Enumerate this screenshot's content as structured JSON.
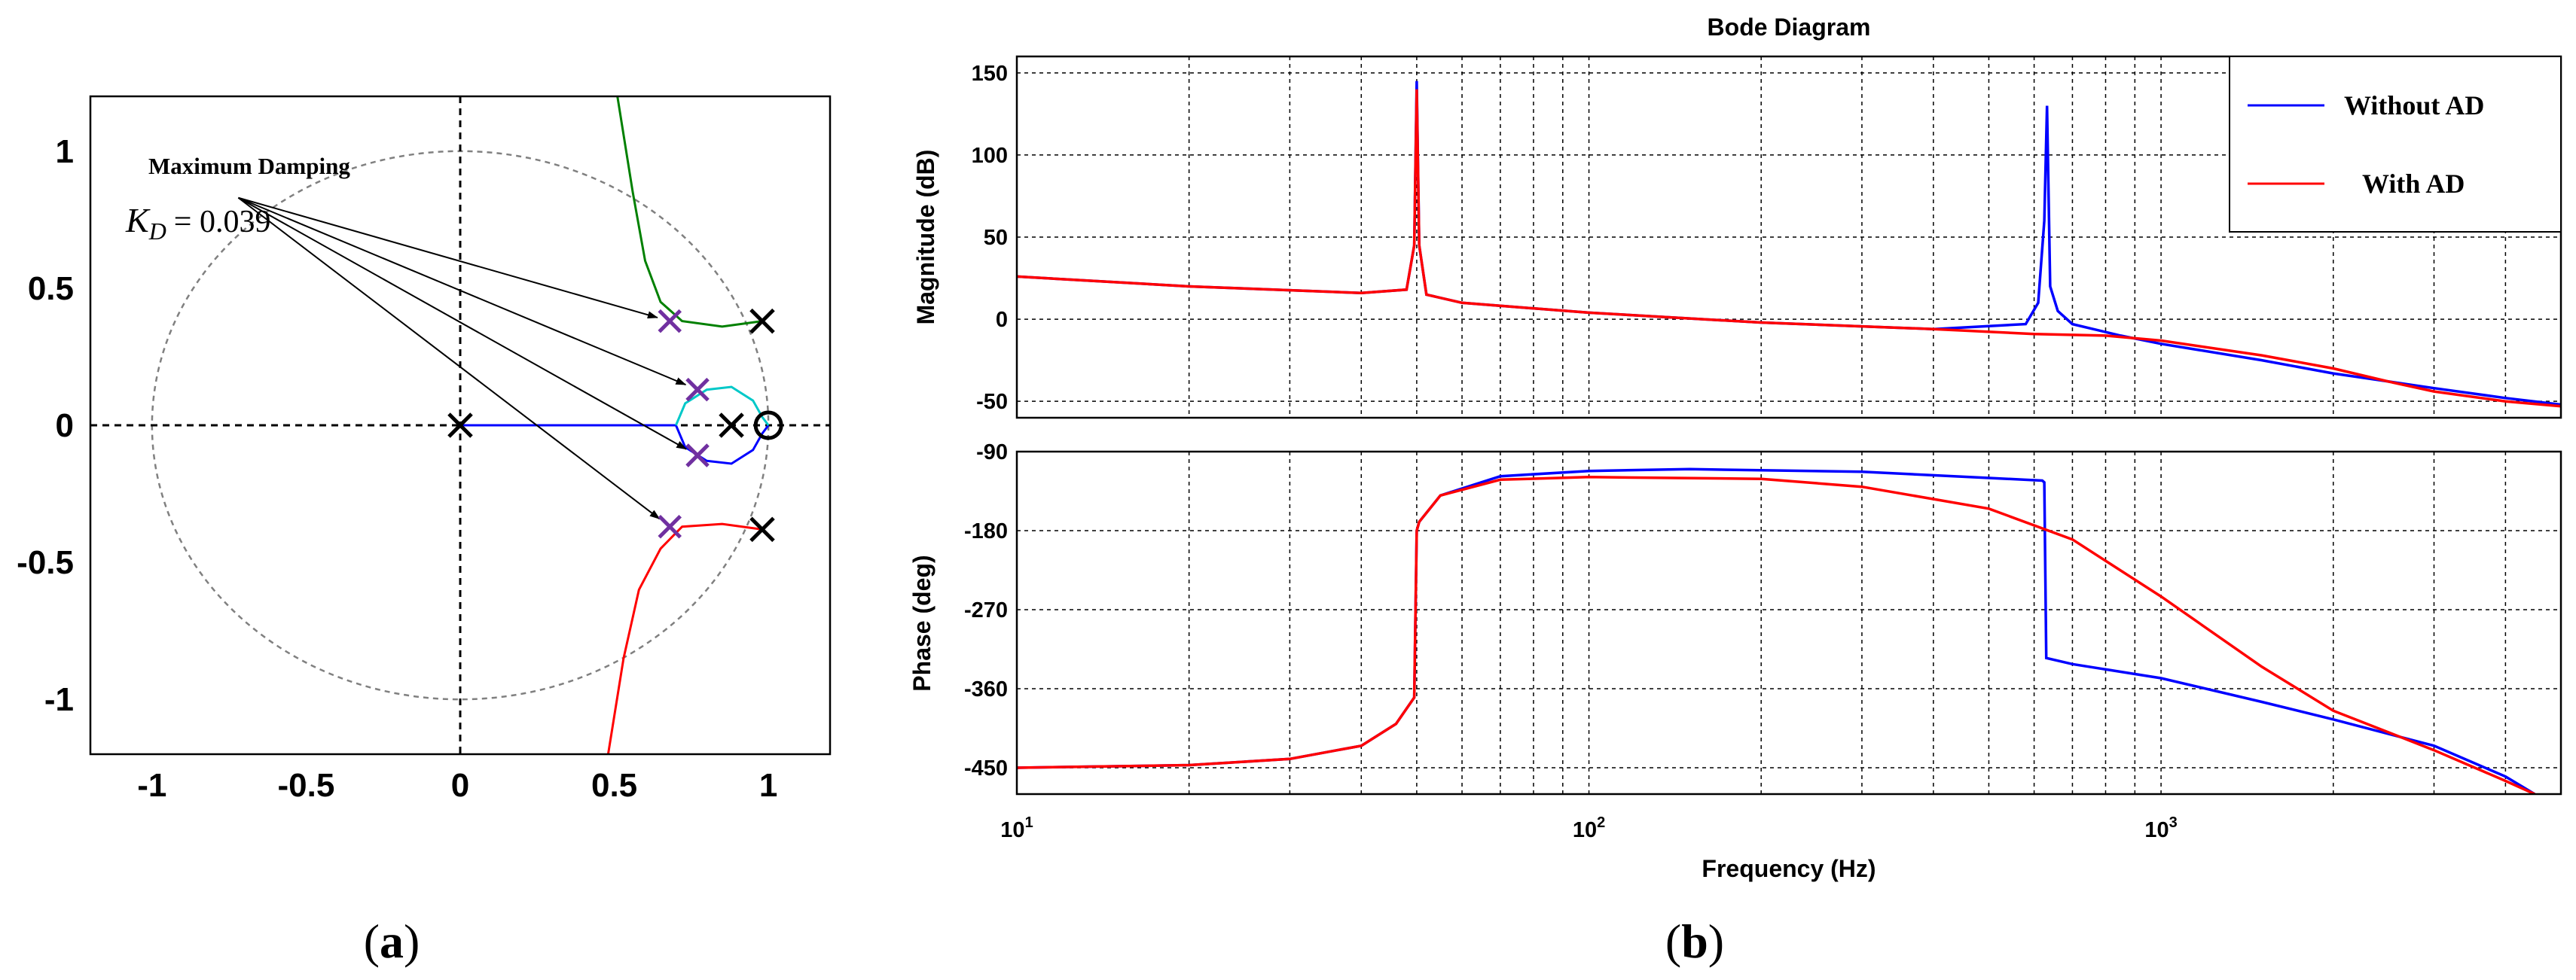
{
  "chart_data": [
    {
      "id": "root-locus",
      "type": "scatter",
      "caption": {
        "open": "(",
        "letter": "a",
        "close": ")"
      },
      "xlim": [
        -1.2,
        1.2
      ],
      "ylim": [
        -1.2,
        1.2
      ],
      "xticks": [
        -1,
        -0.5,
        0,
        0.5,
        1
      ],
      "xtick_labels": [
        "-1",
        "-0.5",
        "0",
        "0.5",
        "1"
      ],
      "yticks": [
        1,
        0.5,
        0,
        -0.5,
        -1
      ],
      "ytick_labels": [
        "1",
        "0.5",
        "0",
        "-0.5",
        "-1"
      ],
      "annotation": {
        "title": "Maximum Damping",
        "k_symbol": "K",
        "k_subscript": "D",
        "k_value": "= 0.039",
        "text_anchor": [
          -0.72,
          0.83
        ],
        "targets": [
          [
            0.68,
            0.38
          ],
          [
            0.77,
            0.13
          ],
          [
            0.77,
            -0.11
          ],
          [
            0.68,
            -0.37
          ]
        ]
      },
      "unit_circle": {
        "radius": 1
      },
      "open_loop_poles": [
        [
          0,
          0
        ],
        [
          0.88,
          0
        ],
        [
          0.98,
          0.38
        ],
        [
          0.98,
          -0.38
        ]
      ],
      "zeros": [
        [
          1.0,
          0
        ]
      ],
      "closed_loop_poles": [
        [
          0.68,
          0.38
        ],
        [
          0.77,
          0.13
        ],
        [
          0.77,
          -0.11
        ],
        [
          0.68,
          -0.37
        ]
      ],
      "branches": [
        {
          "color": "#008000",
          "points": [
            [
              0.98,
              0.38
            ],
            [
              0.85,
              0.36
            ],
            [
              0.72,
              0.38
            ],
            [
              0.65,
              0.45
            ],
            [
              0.6,
              0.6
            ],
            [
              0.56,
              0.85
            ],
            [
              0.51,
              1.2
            ]
          ]
        },
        {
          "color": "#ff0000",
          "points": [
            [
              0.98,
              -0.38
            ],
            [
              0.85,
              -0.36
            ],
            [
              0.72,
              -0.37
            ],
            [
              0.65,
              -0.45
            ],
            [
              0.58,
              -0.6
            ],
            [
              0.53,
              -0.85
            ],
            [
              0.48,
              -1.2
            ]
          ]
        },
        {
          "color": "#0000ff",
          "points": [
            [
              0.0,
              0.0
            ],
            [
              0.7,
              0.0
            ]
          ]
        },
        {
          "color": "#0000ff",
          "points": [
            [
              0.7,
              0.0
            ],
            [
              0.73,
              -0.08
            ],
            [
              0.8,
              -0.13
            ],
            [
              0.88,
              -0.14
            ],
            [
              0.95,
              -0.09
            ],
            [
              0.98,
              -0.03
            ],
            [
              1.0,
              0.0
            ]
          ]
        },
        {
          "color": "#00c8c8",
          "points": [
            [
              0.7,
              0.0
            ],
            [
              0.73,
              0.08
            ],
            [
              0.8,
              0.13
            ],
            [
              0.88,
              0.14
            ],
            [
              0.95,
              0.09
            ],
            [
              0.98,
              0.03
            ],
            [
              1.0,
              0.0
            ]
          ]
        }
      ]
    },
    {
      "id": "bode",
      "type": "line",
      "title": "Bode Diagram",
      "caption": {
        "open": "(",
        "letter": "b",
        "close": ")"
      },
      "xlabel": "Frequency  (Hz)",
      "xscale": "log",
      "xlim": [
        10,
        5000
      ],
      "xtick_labels": [
        {
          "base": "10",
          "exp": "1"
        },
        {
          "base": "10",
          "exp": "2"
        },
        {
          "base": "10",
          "exp": "3"
        }
      ],
      "legend": {
        "position": "top-right",
        "entries": [
          {
            "label": "Without AD",
            "color": "#0000ff"
          },
          {
            "label": "With AD",
            "color": "#ff0000"
          }
        ]
      },
      "magnitude": {
        "ylabel": "Magnitude (dB)",
        "ylim": [
          -60,
          160
        ],
        "yticks": [
          150,
          100,
          50,
          0,
          -50
        ],
        "ytick_labels": [
          "150",
          "100",
          "50",
          "0",
          "-50"
        ],
        "series": [
          {
            "name": "Without AD",
            "color": "#0000ff",
            "x": [
              10,
              20,
              40,
              48,
              49.5,
              50,
              50.5,
              52,
              60,
              100,
              200,
              400,
              580,
              610,
              625,
              632,
              640,
              660,
              700,
              850,
              1000,
              1500,
              2000,
              3000,
              4000,
              5000
            ],
            "y": [
              26,
              20,
              16,
              18,
              45,
              145,
              45,
              15,
              10,
              4,
              -2,
              -6,
              -3,
              10,
              60,
              130,
              20,
              5,
              -3,
              -10,
              -15,
              -25,
              -33,
              -42,
              -48,
              -52
            ]
          },
          {
            "name": "With AD",
            "color": "#ff0000",
            "x": [
              10,
              20,
              40,
              48,
              49.5,
              50,
              50.5,
              52,
              60,
              100,
              200,
              400,
              600,
              800,
              1000,
              1500,
              2000,
              2500,
              3000,
              4000,
              5000
            ],
            "y": [
              26,
              20,
              16,
              18,
              45,
              140,
              45,
              15,
              10,
              4,
              -2,
              -6,
              -9,
              -10,
              -13,
              -22,
              -30,
              -38,
              -44,
              -50,
              -53
            ]
          }
        ]
      },
      "phase": {
        "ylabel": "Phase (deg)",
        "ylim": [
          -480,
          -90
        ],
        "yticks": [
          -90,
          -180,
          -270,
          -360,
          -450
        ],
        "ytick_labels": [
          "-90",
          "-180",
          "-270",
          "-360",
          "-450"
        ],
        "series": [
          {
            "name": "Without AD",
            "color": "#0000ff",
            "x": [
              10,
              20,
              30,
              40,
              46,
              49.5,
              50,
              50.5,
              55,
              70,
              100,
              150,
              300,
              500,
              620,
              625,
              630,
              700,
              1000,
              1500,
              2000,
              3000,
              4000,
              4500
            ],
            "y": [
              -450,
              -447,
              -440,
              -425,
              -400,
              -370,
              -180,
              -170,
              -140,
              -118,
              -112,
              -110,
              -113,
              -120,
              -123,
              -125,
              -325,
              -332,
              -348,
              -375,
              -395,
              -425,
              -460,
              -480
            ]
          },
          {
            "name": "With AD",
            "color": "#ff0000",
            "x": [
              10,
              20,
              30,
              40,
              46,
              49.5,
              50,
              50.5,
              55,
              70,
              100,
              200,
              300,
              500,
              700,
              1000,
              1500,
              2000,
              3000,
              4000,
              4500
            ],
            "y": [
              -450,
              -447,
              -440,
              -425,
              -400,
              -370,
              -180,
              -170,
              -140,
              -122,
              -119,
              -121,
              -130,
              -155,
              -190,
              -255,
              -335,
              -385,
              -430,
              -465,
              -480
            ]
          }
        ]
      }
    }
  ]
}
